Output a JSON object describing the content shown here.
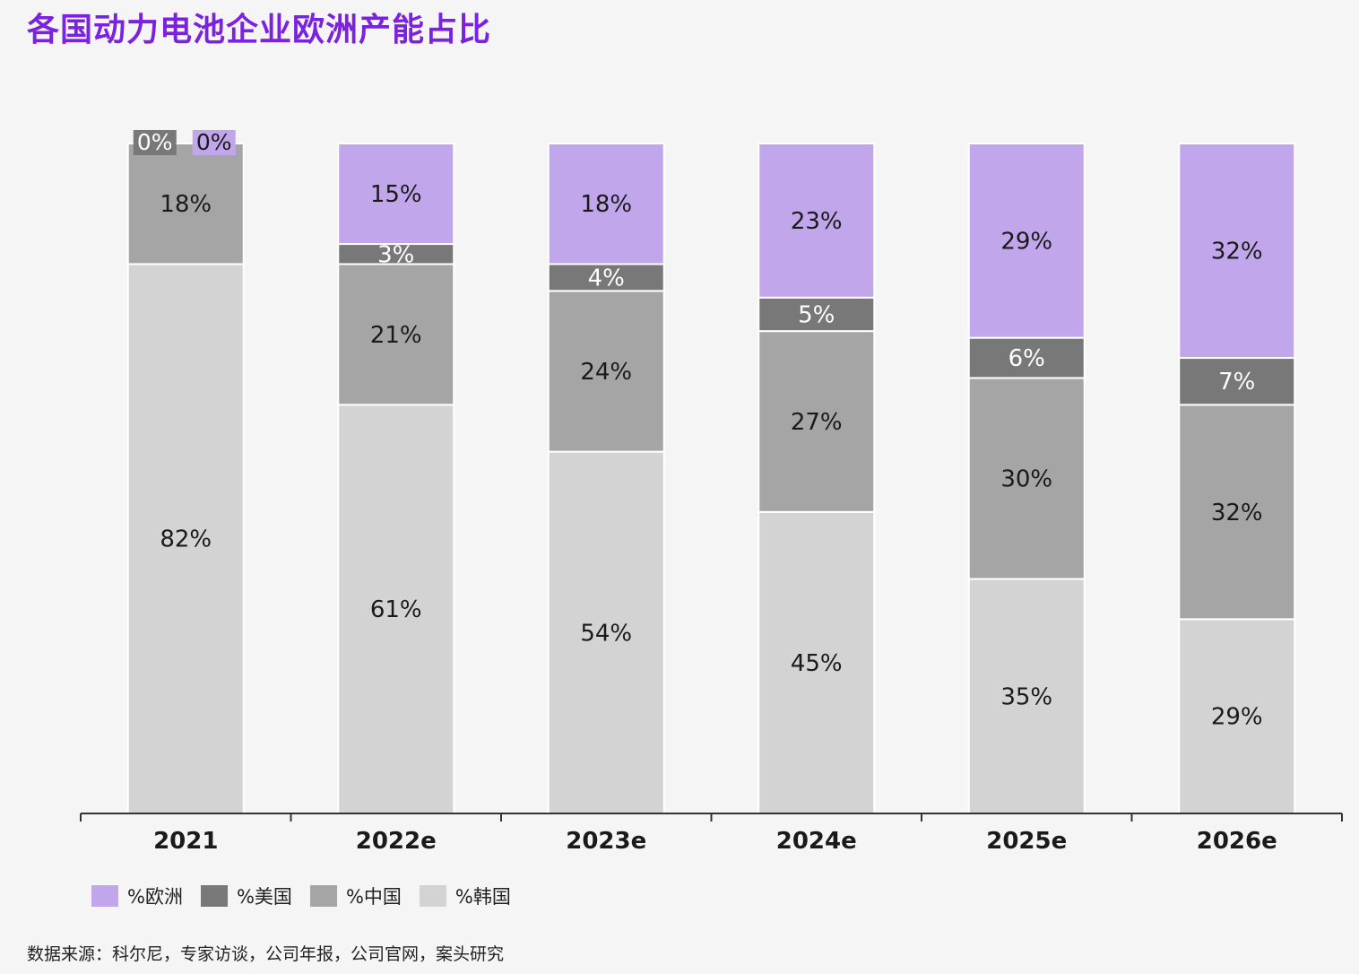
{
  "title": "各国动力电池企业欧洲产能占比",
  "source": "数据来源：科尔尼，专家访谈，公司年报，公司官网，案头研究",
  "colors": {
    "europe": "#c2a6ec",
    "usa": "#787878",
    "china": "#a5a5a5",
    "korea": "#d3d3d3",
    "title": "#7b22e0"
  },
  "legend": [
    {
      "label": "%欧洲",
      "color": "#c2a6ec"
    },
    {
      "label": "%美国",
      "color": "#787878"
    },
    {
      "label": "%中国",
      "color": "#a5a5a5"
    },
    {
      "label": "%韩国",
      "color": "#d3d3d3"
    }
  ],
  "chart_data": {
    "type": "bar",
    "stacked": true,
    "title": "各国动力电池企业欧洲产能占比",
    "xlabel": "",
    "ylabel": "",
    "ylim": [
      0,
      100
    ],
    "grid": false,
    "legend_position": "bottom-left",
    "categories": [
      "2021",
      "2022e",
      "2023e",
      "2024e",
      "2025e",
      "2026e"
    ],
    "series": [
      {
        "name": "%韩国",
        "color": "#d3d3d3",
        "values": [
          82,
          61,
          54,
          45,
          35,
          29
        ],
        "labels": [
          "82%",
          "61%",
          "54%",
          "45%",
          "35%",
          "29%"
        ]
      },
      {
        "name": "%中国",
        "color": "#a5a5a5",
        "values": [
          18,
          21,
          24,
          27,
          30,
          32
        ],
        "labels": [
          "18%",
          "21%",
          "24%",
          "27%",
          "30%",
          "32%"
        ]
      },
      {
        "name": "%美国",
        "color": "#787878",
        "values": [
          0,
          3,
          4,
          5,
          6,
          7
        ],
        "labels": [
          "0%",
          "3%",
          "4%",
          "5%",
          "6%",
          "7%"
        ]
      },
      {
        "name": "%欧洲",
        "color": "#c2a6ec",
        "values": [
          0,
          15,
          18,
          23,
          29,
          32
        ],
        "labels": [
          "0%",
          "15%",
          "18%",
          "23%",
          "29%",
          "32%"
        ]
      }
    ]
  }
}
